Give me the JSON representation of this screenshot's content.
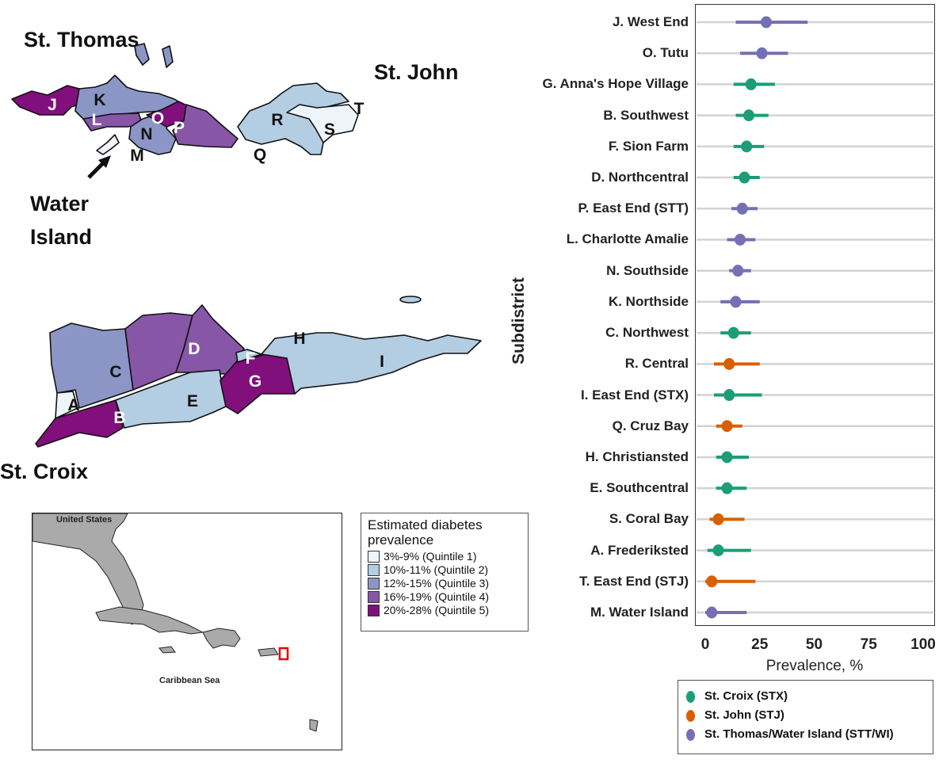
{
  "map": {
    "islands": {
      "st_thomas": "St. Thomas",
      "st_john": "St. John",
      "st_croix": "St. Croix",
      "water_island": "Water\nIsland"
    },
    "regions": {
      "A": "A",
      "B": "B",
      "C": "C",
      "D": "D",
      "E": "E",
      "F": "F",
      "G": "G",
      "H": "H",
      "I": "I",
      "J": "J",
      "K": "K",
      "L": "L",
      "M": "M",
      "N": "N",
      "O": "O",
      "P": "P",
      "Q": "Q",
      "R": "R",
      "S": "S",
      "T": "T"
    },
    "quintile_colors": [
      "#eef5fa",
      "#b3cde3",
      "#8c96c6",
      "#8856a7",
      "#810f7c"
    ],
    "inset": {
      "label_us": "United States",
      "label_sea": "Caribbean Sea"
    },
    "legend": {
      "title": "Estimated diabetes prevalence",
      "items": [
        "3%-9% (Quintile 1)",
        "10%-11% (Quintile 2)",
        "12%-15% (Quintile 3)",
        "16%-19% (Quintile 4)",
        "20%-28% (Quintile 5)"
      ]
    }
  },
  "chart_data": {
    "type": "forest",
    "title": "",
    "xlabel": "Prevalence, %",
    "ylabel": "Subdistrict",
    "xlim": [
      0,
      100
    ],
    "xticks": [
      0,
      25,
      50,
      75,
      100
    ],
    "grid": "horizontal",
    "legend_placement": "bottom",
    "series": [
      {
        "key": "STX",
        "name": "St. Croix (STX)",
        "color": "#1b9e77"
      },
      {
        "key": "STJ",
        "name": "St. John (STJ)",
        "color": "#d95f02"
      },
      {
        "key": "STT",
        "name": "St. Thomas/Water Island (STT/WI)",
        "color": "#7570b3"
      }
    ],
    "rows": [
      {
        "label": "J. West End",
        "series": "STT",
        "estimate": 28,
        "low": 14,
        "high": 47
      },
      {
        "label": "O. Tutu",
        "series": "STT",
        "estimate": 26,
        "low": 16,
        "high": 38
      },
      {
        "label": "G. Anna's Hope Village",
        "series": "STX",
        "estimate": 21,
        "low": 13,
        "high": 32
      },
      {
        "label": "B. Southwest",
        "series": "STX",
        "estimate": 20,
        "low": 14,
        "high": 29
      },
      {
        "label": "F. Sion Farm",
        "series": "STX",
        "estimate": 19,
        "low": 13,
        "high": 27
      },
      {
        "label": "D. Northcentral",
        "series": "STX",
        "estimate": 18,
        "low": 13,
        "high": 25
      },
      {
        "label": "P. East End (STT)",
        "series": "STT",
        "estimate": 17,
        "low": 12,
        "high": 24
      },
      {
        "label": "L. Charlotte Amalie",
        "series": "STT",
        "estimate": 16,
        "low": 10,
        "high": 23
      },
      {
        "label": "N. Southside",
        "series": "STT",
        "estimate": 15,
        "low": 11,
        "high": 21
      },
      {
        "label": "K. Northside",
        "series": "STT",
        "estimate": 14,
        "low": 7,
        "high": 25
      },
      {
        "label": "C. Northwest",
        "series": "STX",
        "estimate": 13,
        "low": 7,
        "high": 21
      },
      {
        "label": "R. Central",
        "series": "STJ",
        "estimate": 11,
        "low": 4,
        "high": 25
      },
      {
        "label": "I. East End (STX)",
        "series": "STX",
        "estimate": 11,
        "low": 4,
        "high": 26
      },
      {
        "label": "Q. Cruz Bay",
        "series": "STJ",
        "estimate": 10,
        "low": 5,
        "high": 17
      },
      {
        "label": "H. Christiansted",
        "series": "STX",
        "estimate": 10,
        "low": 5,
        "high": 20
      },
      {
        "label": "E. Southcentral",
        "series": "STX",
        "estimate": 10,
        "low": 5,
        "high": 19
      },
      {
        "label": "S. Coral Bay",
        "series": "STJ",
        "estimate": 6,
        "low": 2,
        "high": 18
      },
      {
        "label": "A. Frederiksted",
        "series": "STX",
        "estimate": 6,
        "low": 1,
        "high": 21
      },
      {
        "label": "T. East End (STJ)",
        "series": "STJ",
        "estimate": 3,
        "low": 0,
        "high": 23
      },
      {
        "label": "M. Water Island",
        "series": "STT",
        "estimate": 3,
        "low": 0,
        "high": 19
      }
    ]
  }
}
